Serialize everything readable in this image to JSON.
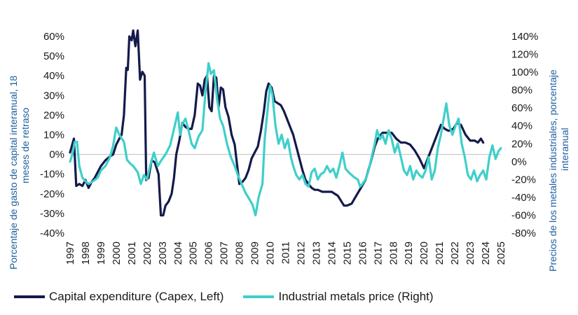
{
  "chart_data": {
    "type": "line",
    "colors": {
      "capex": "#141a4a",
      "metals": "#3fcfca",
      "axis_title": "#1f5f9e"
    },
    "left_axis": {
      "title_line1": "Porcentaje de gasto de capital interanual, 18",
      "title_line2": "meses de retraso",
      "ylim": [
        -40,
        60
      ],
      "ticks": [
        60,
        50,
        40,
        30,
        20,
        10,
        0,
        -10,
        -20,
        -30,
        -40
      ],
      "tick_labels": [
        "60%",
        "50%",
        "40%",
        "30%",
        "20%",
        "10%",
        "0%",
        "-10%",
        "-20%",
        "-30%",
        "-40%"
      ]
    },
    "right_axis": {
      "title_line1": "Precios de los metales industriales, porcentaje",
      "title_line2": "interanual",
      "ylim": [
        -80,
        140
      ],
      "ticks": [
        140,
        120,
        100,
        80,
        60,
        40,
        20,
        0,
        -20,
        -40,
        -60,
        -80
      ],
      "tick_labels": [
        "140%",
        "120%",
        "100%",
        "80%",
        "60%",
        "40%",
        "20%",
        "0%",
        "-20%",
        "-40%",
        "-60%",
        "-80%"
      ]
    },
    "x_axis": {
      "xlim": [
        1997,
        2025
      ],
      "years": [
        "1997",
        "1998",
        "1999",
        "2000",
        "2001",
        "2002",
        "2003",
        "2004",
        "2005",
        "2006",
        "2007",
        "2008",
        "2009",
        "2010",
        "2011",
        "2012",
        "2013",
        "2014",
        "2015",
        "2016",
        "2017",
        "2018",
        "2019",
        "2020",
        "2021",
        "2022",
        "2023",
        "2024",
        "2025"
      ]
    },
    "series": [
      {
        "name": "Capital expenditure (Capex, Left)",
        "axis": "left",
        "points": [
          [
            1997.0,
            1
          ],
          [
            1997.25,
            8
          ],
          [
            1997.4,
            -16
          ],
          [
            1997.6,
            -15
          ],
          [
            1997.8,
            -16
          ],
          [
            1998.0,
            -13
          ],
          [
            1998.2,
            -17
          ],
          [
            1998.4,
            -14
          ],
          [
            1998.6,
            -12
          ],
          [
            1998.8,
            -9
          ],
          [
            1999.0,
            -6
          ],
          [
            1999.3,
            -3
          ],
          [
            1999.6,
            -1
          ],
          [
            1999.8,
            0
          ],
          [
            2000.0,
            5
          ],
          [
            2000.2,
            8
          ],
          [
            2000.35,
            10
          ],
          [
            2000.5,
            20
          ],
          [
            2000.65,
            44
          ],
          [
            2000.75,
            43
          ],
          [
            2000.85,
            60
          ],
          [
            2001.0,
            58
          ],
          [
            2001.1,
            63
          ],
          [
            2001.25,
            55
          ],
          [
            2001.4,
            63
          ],
          [
            2001.55,
            38
          ],
          [
            2001.7,
            42
          ],
          [
            2001.85,
            40
          ],
          [
            2001.95,
            -13
          ],
          [
            2002.1,
            -12
          ],
          [
            2002.3,
            -3
          ],
          [
            2002.5,
            -4
          ],
          [
            2002.75,
            -10
          ],
          [
            2002.9,
            -31
          ],
          [
            2003.05,
            -31
          ],
          [
            2003.2,
            -26
          ],
          [
            2003.4,
            -24
          ],
          [
            2003.6,
            -20
          ],
          [
            2003.75,
            -12
          ],
          [
            2003.9,
            0
          ],
          [
            2004.1,
            7
          ],
          [
            2004.3,
            16
          ],
          [
            2004.5,
            14
          ],
          [
            2004.7,
            13
          ],
          [
            2004.9,
            13
          ],
          [
            2005.1,
            20
          ],
          [
            2005.3,
            36
          ],
          [
            2005.45,
            35
          ],
          [
            2005.6,
            30
          ],
          [
            2005.75,
            38
          ],
          [
            2005.9,
            40
          ],
          [
            2006.05,
            24
          ],
          [
            2006.2,
            22
          ],
          [
            2006.35,
            40
          ],
          [
            2006.5,
            39
          ],
          [
            2006.65,
            24
          ],
          [
            2006.8,
            34
          ],
          [
            2006.95,
            33
          ],
          [
            2007.1,
            24
          ],
          [
            2007.3,
            19
          ],
          [
            2007.5,
            10
          ],
          [
            2007.7,
            5
          ],
          [
            2007.85,
            -5
          ],
          [
            2008.0,
            -15
          ],
          [
            2008.2,
            -14
          ],
          [
            2008.4,
            -12
          ],
          [
            2008.6,
            -8
          ],
          [
            2008.8,
            -2
          ],
          [
            2009.0,
            1
          ],
          [
            2009.2,
            4
          ],
          [
            2009.4,
            12
          ],
          [
            2009.6,
            22
          ],
          [
            2009.75,
            32
          ],
          [
            2009.9,
            36
          ],
          [
            2010.1,
            34
          ],
          [
            2010.3,
            27
          ],
          [
            2010.5,
            26
          ],
          [
            2010.7,
            25
          ],
          [
            2010.9,
            22
          ],
          [
            2011.1,
            18
          ],
          [
            2011.3,
            14
          ],
          [
            2011.5,
            10
          ],
          [
            2011.7,
            4
          ],
          [
            2011.9,
            -2
          ],
          [
            2012.1,
            -8
          ],
          [
            2012.3,
            -13
          ],
          [
            2012.5,
            -15
          ],
          [
            2012.7,
            -17
          ],
          [
            2012.9,
            -18
          ],
          [
            2013.1,
            -18
          ],
          [
            2013.4,
            -19
          ],
          [
            2013.7,
            -19
          ],
          [
            2014.0,
            -19
          ],
          [
            2014.4,
            -21
          ],
          [
            2014.8,
            -26
          ],
          [
            2015.0,
            -26
          ],
          [
            2015.3,
            -25
          ],
          [
            2015.6,
            -21
          ],
          [
            2015.9,
            -17
          ],
          [
            2016.2,
            -13
          ],
          [
            2016.5,
            -5
          ],
          [
            2016.8,
            4
          ],
          [
            2017.0,
            8
          ],
          [
            2017.3,
            11
          ],
          [
            2017.6,
            11
          ],
          [
            2017.9,
            11
          ],
          [
            2018.2,
            8
          ],
          [
            2018.5,
            6
          ],
          [
            2018.8,
            6
          ],
          [
            2019.1,
            5
          ],
          [
            2019.4,
            2
          ],
          [
            2019.7,
            -2
          ],
          [
            2020.0,
            -7
          ],
          [
            2020.2,
            -3
          ],
          [
            2020.5,
            3
          ],
          [
            2020.8,
            9
          ],
          [
            2021.1,
            15
          ],
          [
            2021.35,
            13
          ],
          [
            2021.6,
            12
          ],
          [
            2021.9,
            13
          ],
          [
            2022.15,
            16
          ],
          [
            2022.4,
            15
          ],
          [
            2022.7,
            10
          ],
          [
            2023.0,
            7
          ],
          [
            2023.3,
            7
          ],
          [
            2023.5,
            6
          ],
          [
            2023.7,
            8
          ],
          [
            2023.85,
            6
          ]
        ]
      },
      {
        "name": "Industrial metals price (Right)",
        "axis": "right",
        "points": [
          [
            1997.0,
            0
          ],
          [
            1997.15,
            8
          ],
          [
            1997.3,
            22
          ],
          [
            1997.45,
            22
          ],
          [
            1997.6,
            -5
          ],
          [
            1997.8,
            -18
          ],
          [
            1998.0,
            -22
          ],
          [
            1998.2,
            -25
          ],
          [
            1998.5,
            -22
          ],
          [
            1998.8,
            -18
          ],
          [
            1999.0,
            -10
          ],
          [
            1999.3,
            -5
          ],
          [
            1999.6,
            5
          ],
          [
            1999.8,
            18
          ],
          [
            2000.0,
            38
          ],
          [
            2000.2,
            30
          ],
          [
            2000.5,
            22
          ],
          [
            2000.7,
            2
          ],
          [
            2000.9,
            -2
          ],
          [
            2001.1,
            -5
          ],
          [
            2001.4,
            -12
          ],
          [
            2001.6,
            -25
          ],
          [
            2001.8,
            -15
          ],
          [
            2002.0,
            -20
          ],
          [
            2002.2,
            -5
          ],
          [
            2002.45,
            10
          ],
          [
            2002.7,
            -5
          ],
          [
            2002.95,
            2
          ],
          [
            2003.2,
            8
          ],
          [
            2003.5,
            18
          ],
          [
            2003.8,
            40
          ],
          [
            2004.0,
            55
          ],
          [
            2004.15,
            30
          ],
          [
            2004.3,
            42
          ],
          [
            2004.5,
            48
          ],
          [
            2004.7,
            35
          ],
          [
            2004.9,
            20
          ],
          [
            2005.1,
            15
          ],
          [
            2005.35,
            28
          ],
          [
            2005.6,
            35
          ],
          [
            2005.8,
            78
          ],
          [
            2006.0,
            110
          ],
          [
            2006.15,
            98
          ],
          [
            2006.35,
            102
          ],
          [
            2006.55,
            70
          ],
          [
            2006.75,
            48
          ],
          [
            2006.95,
            40
          ],
          [
            2007.2,
            20
          ],
          [
            2007.45,
            5
          ],
          [
            2007.7,
            -5
          ],
          [
            2007.9,
            -15
          ],
          [
            2008.15,
            -25
          ],
          [
            2008.4,
            -35
          ],
          [
            2008.65,
            -42
          ],
          [
            2008.85,
            -48
          ],
          [
            2009.05,
            -60
          ],
          [
            2009.25,
            -40
          ],
          [
            2009.5,
            -25
          ],
          [
            2009.65,
            25
          ],
          [
            2009.85,
            60
          ],
          [
            2010.0,
            85
          ],
          [
            2010.15,
            75
          ],
          [
            2010.35,
            40
          ],
          [
            2010.55,
            20
          ],
          [
            2010.75,
            30
          ],
          [
            2010.95,
            15
          ],
          [
            2011.15,
            25
          ],
          [
            2011.35,
            5
          ],
          [
            2011.5,
            -5
          ],
          [
            2011.7,
            -15
          ],
          [
            2011.9,
            -20
          ],
          [
            2012.1,
            -15
          ],
          [
            2012.3,
            -25
          ],
          [
            2012.5,
            -28
          ],
          [
            2012.7,
            -12
          ],
          [
            2012.9,
            -8
          ],
          [
            2013.1,
            -20
          ],
          [
            2013.3,
            -14
          ],
          [
            2013.5,
            -12
          ],
          [
            2013.7,
            -5
          ],
          [
            2013.9,
            -12
          ],
          [
            2014.1,
            -8
          ],
          [
            2014.3,
            -18
          ],
          [
            2014.5,
            -5
          ],
          [
            2014.7,
            10
          ],
          [
            2014.9,
            -8
          ],
          [
            2015.1,
            -12
          ],
          [
            2015.3,
            -15
          ],
          [
            2015.5,
            -18
          ],
          [
            2015.7,
            -20
          ],
          [
            2015.85,
            -28
          ],
          [
            2016.0,
            -25
          ],
          [
            2016.2,
            -20
          ],
          [
            2016.4,
            -10
          ],
          [
            2016.6,
            5
          ],
          [
            2016.8,
            20
          ],
          [
            2016.95,
            35
          ],
          [
            2017.15,
            25
          ],
          [
            2017.3,
            30
          ],
          [
            2017.5,
            20
          ],
          [
            2017.7,
            35
          ],
          [
            2017.9,
            25
          ],
          [
            2018.1,
            10
          ],
          [
            2018.3,
            20
          ],
          [
            2018.5,
            5
          ],
          [
            2018.7,
            -10
          ],
          [
            2018.9,
            -15
          ],
          [
            2019.1,
            -5
          ],
          [
            2019.3,
            -20
          ],
          [
            2019.5,
            -10
          ],
          [
            2019.7,
            -15
          ],
          [
            2019.9,
            -18
          ],
          [
            2020.1,
            -10
          ],
          [
            2020.3,
            5
          ],
          [
            2020.5,
            -20
          ],
          [
            2020.7,
            -10
          ],
          [
            2020.9,
            15
          ],
          [
            2021.1,
            30
          ],
          [
            2021.3,
            50
          ],
          [
            2021.45,
            65
          ],
          [
            2021.65,
            40
          ],
          [
            2021.85,
            30
          ],
          [
            2022.05,
            40
          ],
          [
            2022.25,
            48
          ],
          [
            2022.45,
            20
          ],
          [
            2022.65,
            5
          ],
          [
            2022.85,
            -15
          ],
          [
            2023.05,
            -20
          ],
          [
            2023.25,
            -10
          ],
          [
            2023.45,
            -22
          ],
          [
            2023.65,
            -15
          ],
          [
            2023.85,
            -10
          ],
          [
            2024.05,
            -20
          ],
          [
            2024.25,
            5
          ],
          [
            2024.45,
            18
          ],
          [
            2024.65,
            3
          ],
          [
            2024.85,
            12
          ],
          [
            2025.0,
            15
          ]
        ]
      }
    ]
  }
}
